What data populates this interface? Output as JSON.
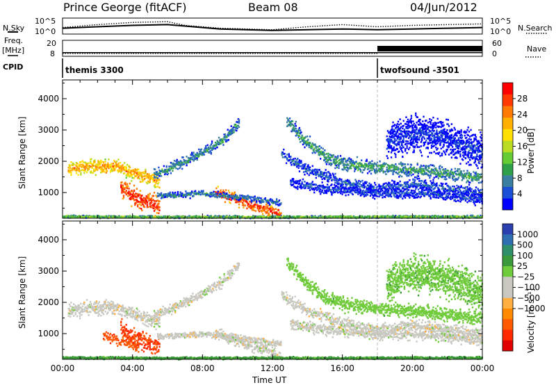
{
  "header": {
    "site": "Prince George (fitACF)",
    "beam": "Beam 08",
    "date": "04/Jun/2012"
  },
  "side_labels": {
    "nsky": "N.Sky",
    "nsearch": "N.Search",
    "freq": "Freq.",
    "freq_unit": "[MHz]",
    "nave": "Nave",
    "cpid": "CPID"
  },
  "chart_data": [
    {
      "type": "line",
      "panel": "noise",
      "y_left_ticks": [
        "10^5",
        "10^0"
      ],
      "y_right_ticks": [
        "10^5",
        "10^0"
      ],
      "series": [
        {
          "name": "N.Sky",
          "style": "solid",
          "x": [
            0,
            2,
            4,
            6,
            7,
            9,
            12,
            14,
            16,
            18,
            20,
            22,
            24
          ],
          "y": [
            0.35,
            0.45,
            0.55,
            0.6,
            0.5,
            0.3,
            0.2,
            0.25,
            0.3,
            0.25,
            0.3,
            0.35,
            0.4
          ]
        },
        {
          "name": "N.Search",
          "style": "dotted",
          "x": [
            0,
            2,
            4,
            6,
            7,
            9,
            12,
            14,
            16,
            18,
            20,
            22,
            24
          ],
          "y": [
            0.4,
            0.6,
            0.75,
            0.8,
            0.55,
            0.35,
            0.25,
            0.45,
            0.6,
            0.45,
            0.55,
            0.6,
            0.65
          ]
        }
      ]
    },
    {
      "type": "line",
      "panel": "frequency",
      "ylim": [
        8,
        20
      ],
      "y_left_ticks": [
        "20",
        "8"
      ],
      "y_right_ticks": [
        "60",
        "0"
      ],
      "series": [
        {
          "name": "Freq.",
          "style": "solid",
          "x": [
            0,
            24
          ],
          "y": [
            10.4,
            10.4
          ]
        },
        {
          "name": "Nave",
          "style": "dotted",
          "x": [
            0,
            18
          ],
          "y": [
            9.8,
            9.8
          ]
        }
      ],
      "blocks": [
        {
          "start": 18,
          "end": 24,
          "label": "Nave"
        }
      ]
    },
    {
      "type": "table",
      "panel": "cpid",
      "segments": [
        {
          "start": 0,
          "end": 18,
          "label": "themis 3300"
        },
        {
          "start": 18,
          "end": 24,
          "label": "twofsound -3501"
        }
      ]
    },
    {
      "type": "heatmap",
      "panel": "power",
      "ylabel": "Slant Range [km]",
      "ylim": [
        180,
        4600
      ],
      "yticks": [
        1000,
        2000,
        3000,
        4000
      ],
      "xlim": [
        0,
        24
      ],
      "colorbar": {
        "label": "Power [dB]",
        "ticks": [
          4,
          8,
          12,
          16,
          20,
          24,
          28
        ],
        "colors": [
          "#0000ff",
          "#1a4fd6",
          "#3a7fa0",
          "#2fa04a",
          "#66cc33",
          "#b9dc22",
          "#ffe000",
          "#ffb000",
          "#ff7a00",
          "#ff3a00",
          "#ff0000"
        ]
      },
      "bands": [
        {
          "t": [
            0.3,
            1.5,
            3,
            4,
            5.5
          ],
          "r": [
            1750,
            1850,
            1850,
            1650,
            1400
          ],
          "w": 260,
          "level": 22
        },
        {
          "t": [
            3.3,
            3.8,
            4.5,
            5.1,
            5.5
          ],
          "r": [
            1180,
            950,
            800,
            680,
            580
          ],
          "w": 340,
          "level": 28
        },
        {
          "t": [
            5.2,
            6.3,
            7.1,
            8,
            9,
            10.1
          ],
          "r": [
            1600,
            1850,
            2050,
            2320,
            2650,
            3250
          ],
          "w": 200,
          "level": 10
        },
        {
          "t": [
            8.7,
            10.5,
            12,
            12.5
          ],
          "r": [
            1050,
            680,
            420,
            280
          ],
          "w": 230,
          "level": 27
        },
        {
          "t": [
            5.4,
            8,
            10.5,
            12.5
          ],
          "r": [
            930,
            1000,
            850,
            700
          ],
          "w": 120,
          "level": 9
        },
        {
          "t": [
            0,
            6,
            12,
            18,
            24
          ],
          "r": [
            260,
            245,
            245,
            250,
            255
          ],
          "w": 45,
          "level": 14
        },
        {
          "t": [
            12.8,
            13.8,
            15,
            16.2,
            17.5,
            19,
            21,
            24
          ],
          "r": [
            3350,
            2700,
            2150,
            1950,
            1850,
            1800,
            1700,
            1500
          ],
          "w": 250,
          "level": 11
        },
        {
          "t": [
            12.5,
            14,
            16,
            18,
            20,
            22,
            24
          ],
          "r": [
            2250,
            1750,
            1350,
            1150,
            1300,
            1150,
            1000
          ],
          "w": 220,
          "level": 7
        },
        {
          "t": [
            13,
            15,
            18,
            21,
            24
          ],
          "r": [
            1350,
            1150,
            1000,
            1000,
            800
          ],
          "w": 200,
          "level": 6
        },
        {
          "t": [
            18.5,
            19.5,
            20.5,
            21.8,
            23,
            24
          ],
          "r": [
            2600,
            2850,
            2950,
            2800,
            2500,
            2300
          ],
          "w": 650,
          "level": 5
        }
      ]
    },
    {
      "type": "heatmap",
      "panel": "velocity",
      "ylabel": "Slant Range [km]",
      "xlabel": "Time UT",
      "ylim": [
        180,
        4600
      ],
      "yticks": [
        1000,
        2000,
        3000,
        4000
      ],
      "xlim": [
        0,
        24
      ],
      "xticks": [
        "00:00",
        "04:00",
        "08:00",
        "12:00",
        "16:00",
        "20:00",
        "00:00"
      ],
      "colorbar": {
        "label": "Velocity [m s⁻¹]",
        "ticks": [
          "1000",
          "500",
          "100",
          "25",
          "−25",
          "−100",
          "−500",
          "−1000"
        ],
        "colors": [
          "#2a3fb0",
          "#2d6fb0",
          "#2f8f6a",
          "#3a9a3a",
          "#6fcb3a",
          "#c8c8c0",
          "#c8c8c0",
          "#ffb040",
          "#ff8a00",
          "#ff5a00",
          "#ff2a00",
          "#e00000"
        ]
      },
      "bands": [
        {
          "t": [
            0.3,
            1.5,
            3,
            4,
            5.5
          ],
          "r": [
            1750,
            1850,
            1850,
            1650,
            1400
          ],
          "w": 260,
          "v": 0
        },
        {
          "t": [
            3.3,
            3.8,
            4.5,
            5.1,
            5.5
          ],
          "r": [
            1180,
            950,
            800,
            680,
            580
          ],
          "w": 340,
          "v": -600
        },
        {
          "t": [
            2.3,
            3.2,
            4.3
          ],
          "r": [
            1000,
            800,
            620
          ],
          "w": 180,
          "v": -550
        },
        {
          "t": [
            5.2,
            6.3,
            7.1,
            8,
            9,
            10.1
          ],
          "r": [
            1600,
            1850,
            2050,
            2320,
            2650,
            3250
          ],
          "w": 200,
          "v": 0
        },
        {
          "t": [
            8.7,
            10.5,
            12,
            12.5
          ],
          "r": [
            1050,
            680,
            420,
            280
          ],
          "w": 230,
          "v": 0
        },
        {
          "t": [
            5.4,
            8,
            10.5,
            12.5
          ],
          "r": [
            930,
            1000,
            850,
            700
          ],
          "w": 120,
          "v": 0
        },
        {
          "t": [
            0,
            6,
            12,
            18,
            24
          ],
          "r": [
            260,
            245,
            245,
            250,
            255
          ],
          "w": 45,
          "v": 120
        },
        {
          "t": [
            12.8,
            13.8,
            15,
            16.2,
            17.5,
            19,
            21,
            24
          ],
          "r": [
            3350,
            2700,
            2150,
            1950,
            1850,
            1800,
            1700,
            1500
          ],
          "w": 250,
          "v": 60
        },
        {
          "t": [
            12.5,
            14,
            16,
            18,
            20,
            22,
            24
          ],
          "r": [
            2250,
            1750,
            1350,
            1150,
            1300,
            1150,
            1000
          ],
          "w": 220,
          "v": 0
        },
        {
          "t": [
            13,
            15,
            18,
            21,
            24
          ],
          "r": [
            1350,
            1150,
            1000,
            1000,
            800
          ],
          "w": 200,
          "v": 0
        },
        {
          "t": [
            18.5,
            19.5,
            20.5,
            21.8,
            23,
            24
          ],
          "r": [
            2600,
            2850,
            2950,
            2800,
            2500,
            2300
          ],
          "w": 650,
          "v": 80
        }
      ]
    }
  ]
}
